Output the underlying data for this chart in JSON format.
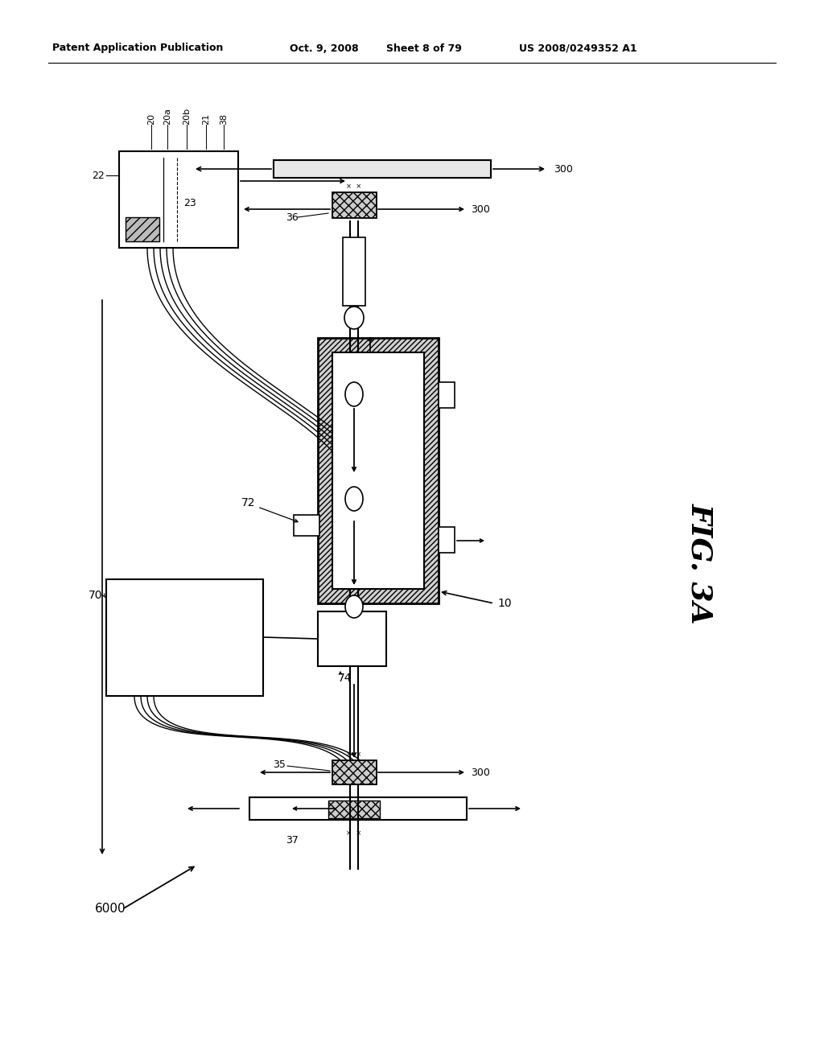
{
  "bg_color": "#ffffff",
  "header_text": "Patent Application Publication",
  "header_date": "Oct. 9, 2008",
  "header_sheet": "Sheet 8 of 79",
  "header_patent": "US 2008/0249352 A1",
  "fig_label": "FIG. 3A"
}
